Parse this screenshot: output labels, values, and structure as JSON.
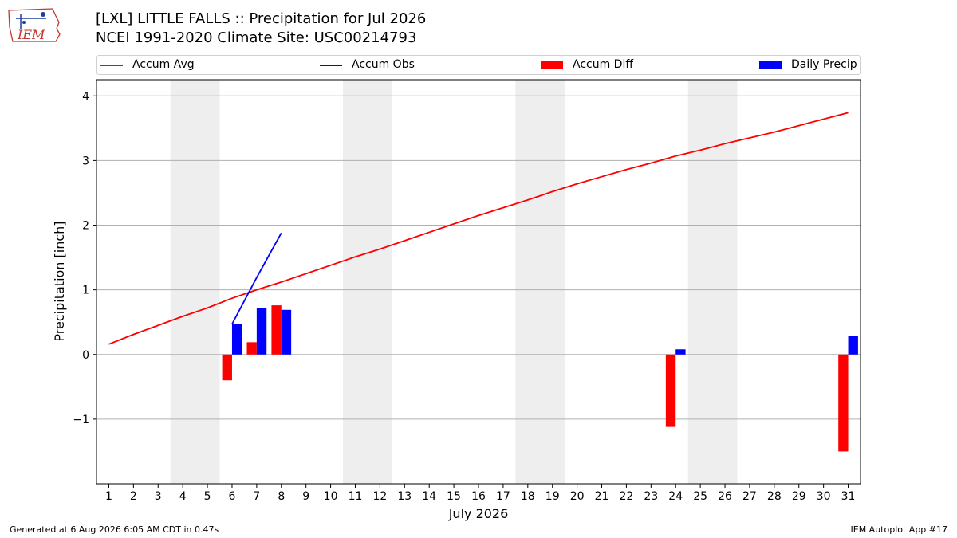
{
  "header": {
    "title_line1": "[LXL] LITTLE FALLS :: Precipitation for Jul 2026",
    "title_line2": "NCEI 1991-2020 Climate Site: USC00214793",
    "logo_text": "IEM"
  },
  "footer": {
    "left": "Generated at 6 Aug 2026 6:05 AM CDT in 0.47s",
    "right": "IEM Autoplot App #17"
  },
  "colors": {
    "accum_avg": "#ff0000",
    "accum_obs": "#0000ff",
    "accum_diff": "#ff0000",
    "daily_precip": "#0000ff",
    "weekend_shade": "#eeeeee",
    "grid": "#b0b0b0"
  },
  "chart_data": {
    "type": "bar",
    "title": "[LXL] LITTLE FALLS :: Precipitation for Jul 2026",
    "subtitle": "NCEI 1991-2020 Climate Site: USC00214793",
    "xlabel": "July 2026",
    "ylabel": "Precipitation [inch]",
    "xlim": [
      0.5,
      31.5
    ],
    "ylim": [
      -2.0,
      4.25
    ],
    "yticks": [
      -1,
      0,
      1,
      2,
      3,
      4
    ],
    "ytick_labels": [
      "−1",
      "0",
      "1",
      "2",
      "3",
      "4"
    ],
    "xticks": [
      1,
      2,
      3,
      4,
      5,
      6,
      7,
      8,
      9,
      10,
      11,
      12,
      13,
      14,
      15,
      16,
      17,
      18,
      19,
      20,
      21,
      22,
      23,
      24,
      25,
      26,
      27,
      28,
      29,
      30,
      31
    ],
    "grid": "horizontal",
    "legend_position": "top",
    "weekend_shading": [
      [
        4,
        5
      ],
      [
        11,
        12
      ],
      [
        18,
        19
      ],
      [
        25,
        26
      ]
    ],
    "series": [
      {
        "name": "Accum Avg",
        "kind": "line",
        "x": [
          1,
          2,
          3,
          4,
          5,
          6,
          7,
          8,
          9,
          10,
          11,
          12,
          13,
          14,
          15,
          16,
          17,
          18,
          19,
          20,
          21,
          22,
          23,
          24,
          25,
          26,
          27,
          28,
          29,
          30,
          31
        ],
        "values": [
          0.16,
          0.31,
          0.45,
          0.59,
          0.72,
          0.87,
          1.0,
          1.12,
          1.25,
          1.38,
          1.51,
          1.63,
          1.76,
          1.89,
          2.02,
          2.15,
          2.27,
          2.39,
          2.52,
          2.64,
          2.75,
          2.86,
          2.96,
          3.07,
          3.16,
          3.26,
          3.35,
          3.44,
          3.54,
          3.64,
          3.74
        ]
      },
      {
        "name": "Accum Obs",
        "kind": "line",
        "x": [
          6,
          7,
          8
        ],
        "values": [
          0.47,
          1.19,
          1.88
        ]
      },
      {
        "name": "Accum Diff",
        "kind": "bar",
        "x": [
          6,
          7,
          8,
          24,
          31
        ],
        "values": [
          -0.4,
          0.19,
          0.76,
          -1.12,
          -1.5
        ]
      },
      {
        "name": "Daily Precip",
        "kind": "bar",
        "x": [
          6,
          7,
          8,
          24,
          31
        ],
        "values": [
          0.47,
          0.72,
          0.69,
          0.08,
          0.29
        ]
      }
    ]
  }
}
